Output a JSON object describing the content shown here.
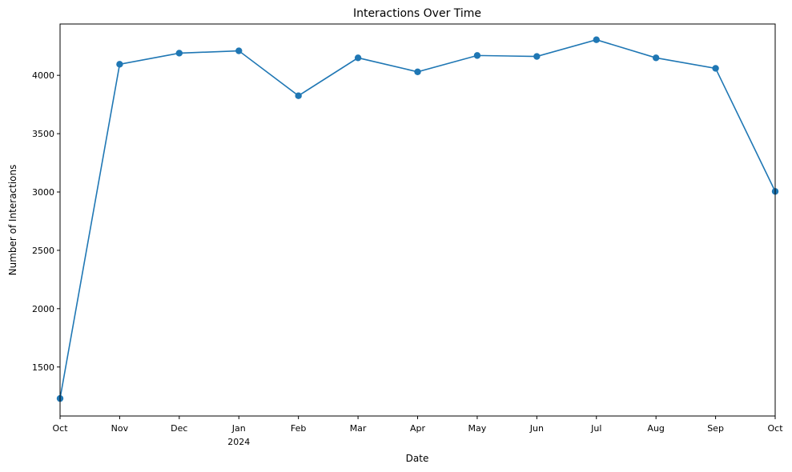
{
  "chart_data": {
    "type": "line",
    "title": "Interactions Over Time",
    "xlabel": "Date",
    "ylabel": "Number of Interactions",
    "x": [
      "Oct",
      "Nov",
      "Dec",
      "Jan",
      "Feb",
      "Mar",
      "Apr",
      "May",
      "Jun",
      "Jul",
      "Aug",
      "Sep",
      "Oct"
    ],
    "x_secondary": {
      "index": 3,
      "label": "2024"
    },
    "series": [
      {
        "name": "Interactions",
        "color": "#1f77b4",
        "marker": "circle",
        "values": [
          1230,
          4095,
          4190,
          4210,
          3825,
          4150,
          4030,
          4170,
          4162,
          4305,
          4150,
          4060,
          3005
        ]
      }
    ],
    "ylim": [
      1080,
      4440
    ],
    "yticks": [
      1500,
      2000,
      2500,
      3000,
      3500,
      4000
    ],
    "grid": false,
    "legend": false
  }
}
